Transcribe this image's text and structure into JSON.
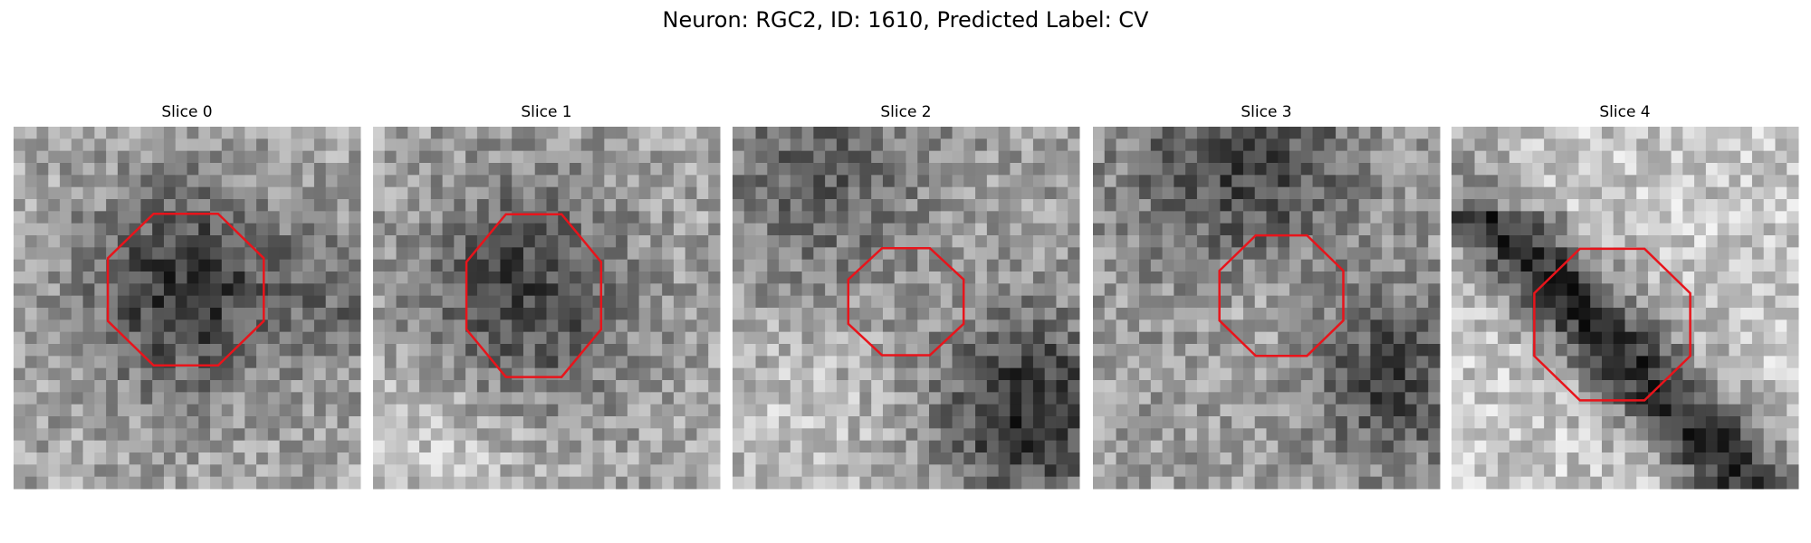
{
  "title": "Neuron: RGC2, ID: 1610, Predicted Label: CV",
  "panels": [
    {
      "title": "Slice 0"
    },
    {
      "title": "Slice 1"
    },
    {
      "title": "Slice 2"
    },
    {
      "title": "Slice 3"
    },
    {
      "title": "Slice 4"
    }
  ]
}
